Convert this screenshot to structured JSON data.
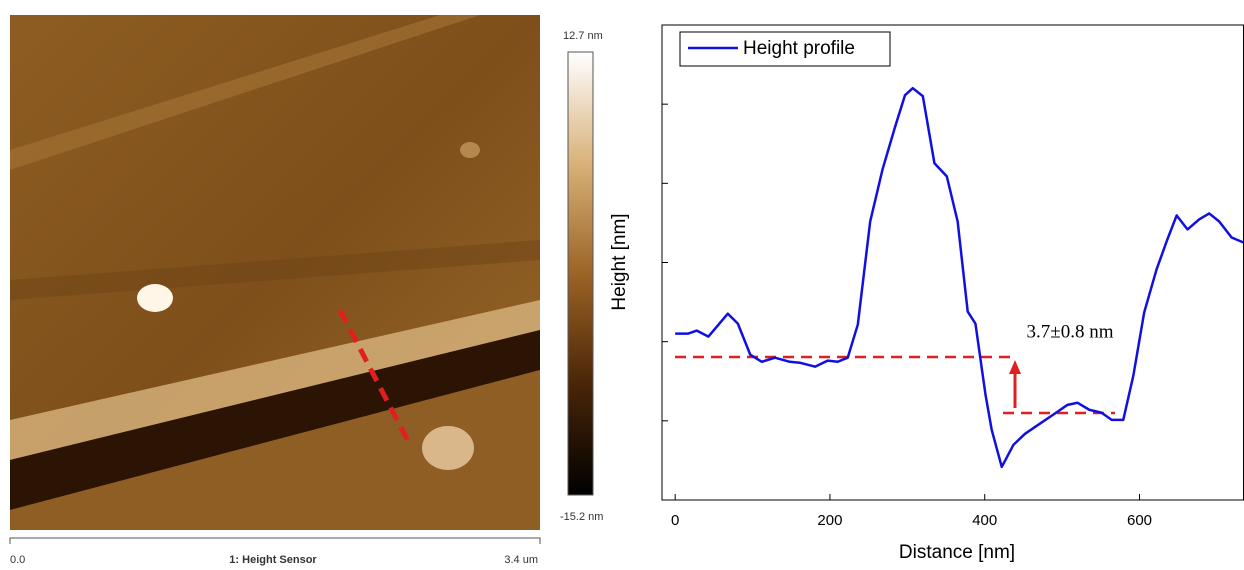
{
  "afm_image": {
    "colorbar_max": "12.7 nm",
    "colorbar_min": "-15.2 nm",
    "scale_start": "0.0",
    "channel": "1: Height Sensor",
    "scale_end": "3.4 um"
  },
  "chart_data": {
    "type": "line",
    "xlabel": "Distance [nm]",
    "ylabel": "Height [nm]",
    "annotation": "3.7±0.8 nm",
    "xlim": [
      -17,
      735
    ],
    "xticks": [
      0,
      200,
      400,
      600
    ],
    "ylim": [
      -10,
      20
    ],
    "yticks": [
      -5,
      0,
      5,
      10,
      15
    ],
    "legend": "top-left",
    "x": [
      0,
      17,
      28,
      43,
      68,
      81,
      97,
      112,
      129,
      148,
      161,
      181,
      197,
      210,
      223,
      236,
      252,
      268,
      284,
      297,
      307,
      320,
      335,
      351,
      365,
      378,
      388,
      401,
      409,
      422,
      437,
      452,
      471,
      490,
      507,
      520,
      535,
      551,
      564,
      579,
      592,
      606,
      622,
      636,
      648,
      662,
      677,
      690,
      703,
      719,
      734
    ],
    "series": [
      {
        "name": "Height profile",
        "color": "#1010e0",
        "values": [
          0.51,
          0.51,
          0.7,
          0.32,
          1.77,
          1.14,
          -0.82,
          -1.27,
          -1.01,
          -1.27,
          -1.33,
          -1.58,
          -1.2,
          -1.27,
          -1.01,
          1.08,
          7.59,
          10.89,
          13.54,
          15.57,
          16.01,
          15.51,
          11.27,
          10.44,
          7.59,
          1.9,
          1.14,
          -3.35,
          -5.57,
          -7.91,
          -6.52,
          -5.82,
          -5.19,
          -4.56,
          -3.99,
          -3.86,
          -4.3,
          -4.49,
          -4.94,
          -4.94,
          -2.15,
          1.84,
          4.56,
          6.46,
          7.97,
          7.09,
          7.72,
          8.1,
          7.59,
          6.58,
          6.27
        ]
      }
    ]
  }
}
